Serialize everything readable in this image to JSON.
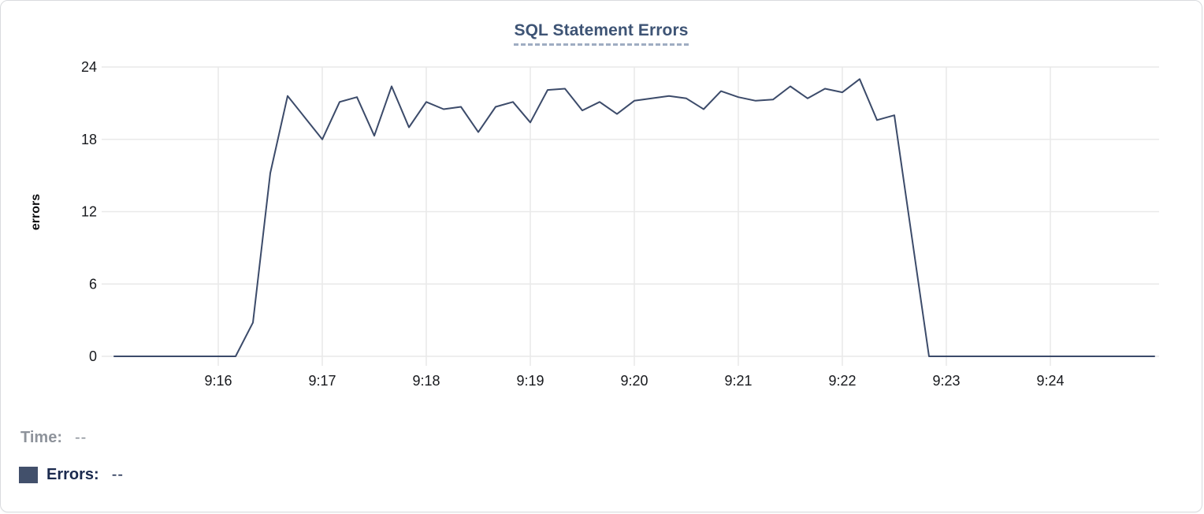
{
  "chart_data": {
    "type": "line",
    "title": "SQL Statement Errors",
    "xlabel": "",
    "ylabel": "errors",
    "ylim": [
      0,
      24
    ],
    "yticks": [
      0,
      6,
      12,
      18,
      24
    ],
    "xticks": [
      "9:16",
      "9:17",
      "9:18",
      "9:19",
      "9:20",
      "9:21",
      "9:22",
      "9:23",
      "9:24"
    ],
    "x_range": [
      "9:15:00",
      "9:25:00"
    ],
    "grid": "on",
    "legend_position": "bottom-left",
    "series": [
      {
        "name": "Errors",
        "color": "#3c4b6a",
        "points": [
          [
            "9:15:00",
            0
          ],
          [
            "9:15:10",
            0
          ],
          [
            "9:15:20",
            0
          ],
          [
            "9:15:30",
            0
          ],
          [
            "9:15:40",
            0
          ],
          [
            "9:15:50",
            0
          ],
          [
            "9:16:00",
            0
          ],
          [
            "9:16:10",
            0
          ],
          [
            "9:16:20",
            2.8
          ],
          [
            "9:16:30",
            15.2
          ],
          [
            "9:16:40",
            21.6
          ],
          [
            "9:16:50",
            19.8
          ],
          [
            "9:17:00",
            18
          ],
          [
            "9:17:10",
            21.1
          ],
          [
            "9:17:20",
            21.5
          ],
          [
            "9:17:30",
            18.3
          ],
          [
            "9:17:40",
            22.4
          ],
          [
            "9:17:50",
            19
          ],
          [
            "9:18:00",
            21.1
          ],
          [
            "9:18:10",
            20.5
          ],
          [
            "9:18:20",
            20.7
          ],
          [
            "9:18:30",
            18.6
          ],
          [
            "9:18:40",
            20.7
          ],
          [
            "9:18:50",
            21.1
          ],
          [
            "9:19:00",
            19.4
          ],
          [
            "9:19:10",
            22.1
          ],
          [
            "9:19:20",
            22.2
          ],
          [
            "9:19:30",
            20.4
          ],
          [
            "9:19:40",
            21.1
          ],
          [
            "9:19:50",
            20.1
          ],
          [
            "9:20:00",
            21.2
          ],
          [
            "9:20:10",
            21.4
          ],
          [
            "9:20:20",
            21.6
          ],
          [
            "9:20:30",
            21.4
          ],
          [
            "9:20:40",
            20.5
          ],
          [
            "9:20:50",
            22
          ],
          [
            "9:21:00",
            21.5
          ],
          [
            "9:21:10",
            21.2
          ],
          [
            "9:21:20",
            21.3
          ],
          [
            "9:21:30",
            22.4
          ],
          [
            "9:21:40",
            21.4
          ],
          [
            "9:21:50",
            22.2
          ],
          [
            "9:22:00",
            21.9
          ],
          [
            "9:22:10",
            23
          ],
          [
            "9:22:20",
            19.6
          ],
          [
            "9:22:30",
            20
          ],
          [
            "9:22:40",
            10
          ],
          [
            "9:22:50",
            0
          ],
          [
            "9:23:00",
            0
          ],
          [
            "9:23:10",
            0
          ],
          [
            "9:23:20",
            0
          ],
          [
            "9:23:30",
            0
          ],
          [
            "9:23:40",
            0
          ],
          [
            "9:23:50",
            0
          ],
          [
            "9:24:00",
            0
          ],
          [
            "9:24:10",
            0
          ],
          [
            "9:24:20",
            0
          ],
          [
            "9:24:30",
            0
          ],
          [
            "9:24:40",
            0
          ],
          [
            "9:24:50",
            0
          ],
          [
            "9:25:00",
            0
          ]
        ]
      }
    ]
  },
  "tooltip": {
    "time_label": "Time:",
    "time_value": "--",
    "errors_label": "Errors:",
    "errors_value": "--"
  },
  "colors": {
    "line": "#3c4b6a",
    "swatch": "#42506b",
    "title": "#3e5475",
    "grid": "#e9e9e9",
    "axis_text": "#17191d",
    "time_text": "#8e939b",
    "errors_text": "#1b2a4e"
  }
}
